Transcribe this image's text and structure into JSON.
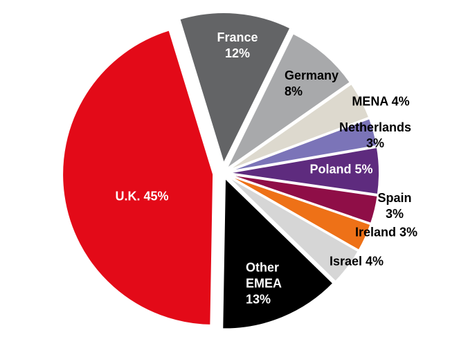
{
  "chart_data": {
    "type": "pie",
    "categories": [
      "France",
      "Germany",
      "MENA",
      "Netherlands",
      "Poland",
      "Spain",
      "Ireland",
      "Israel",
      "Other EMEA",
      "U.K."
    ],
    "values": [
      12,
      8,
      4,
      3,
      5,
      3,
      3,
      4,
      13,
      45
    ],
    "value_labels": [
      "12%",
      "8%",
      "4%",
      "3%",
      "5%",
      "3%",
      "3%",
      "4%",
      "13%",
      "45%"
    ],
    "colors": [
      "#636466",
      "#a8a9ab",
      "#ddd9ce",
      "#7b74b8",
      "#5e2b7e",
      "#8f0e47",
      "#ee7117",
      "#d6d6d6",
      "#000000",
      "#e30a18"
    ]
  }
}
